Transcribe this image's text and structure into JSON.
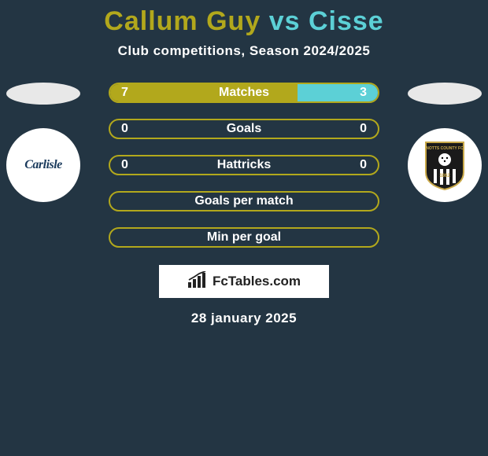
{
  "title": {
    "player1": "Callum Guy",
    "vs": "vs",
    "player2": "Cisse",
    "player1_color": "#b2a81c",
    "vs_color": "#5cd0d6",
    "player2_color": "#5cd0d6"
  },
  "subtitle": "Club competitions, Season 2024/2025",
  "accent_color": "#b2a81c",
  "text_color": "#ffffff",
  "background_color": "#233543",
  "left_club": {
    "name": "Carlisle",
    "circle_bg": "#ffffff"
  },
  "right_club": {
    "name": "Notts County",
    "circle_bg": "#ffffff"
  },
  "stats": [
    {
      "label": "Matches",
      "left_value": "7",
      "right_value": "3",
      "left_fill_pct": 70,
      "right_fill_pct": 30,
      "left_color": "#b2a81c",
      "right_color": "#5cd0d6",
      "border_color": "#b2a81c"
    },
    {
      "label": "Goals",
      "left_value": "0",
      "right_value": "0",
      "left_fill_pct": 0,
      "right_fill_pct": 0,
      "left_color": "#b2a81c",
      "right_color": "#5cd0d6",
      "border_color": "#b2a81c"
    },
    {
      "label": "Hattricks",
      "left_value": "0",
      "right_value": "0",
      "left_fill_pct": 0,
      "right_fill_pct": 0,
      "left_color": "#b2a81c",
      "right_color": "#5cd0d6",
      "border_color": "#b2a81c"
    },
    {
      "label": "Goals per match",
      "left_value": "",
      "right_value": "",
      "left_fill_pct": 0,
      "right_fill_pct": 0,
      "left_color": "#b2a81c",
      "right_color": "#5cd0d6",
      "border_color": "#b2a81c"
    },
    {
      "label": "Min per goal",
      "left_value": "",
      "right_value": "",
      "left_fill_pct": 0,
      "right_fill_pct": 0,
      "left_color": "#b2a81c",
      "right_color": "#5cd0d6",
      "border_color": "#b2a81c"
    }
  ],
  "watermark": "FcTables.com",
  "date": "28 january 2025"
}
